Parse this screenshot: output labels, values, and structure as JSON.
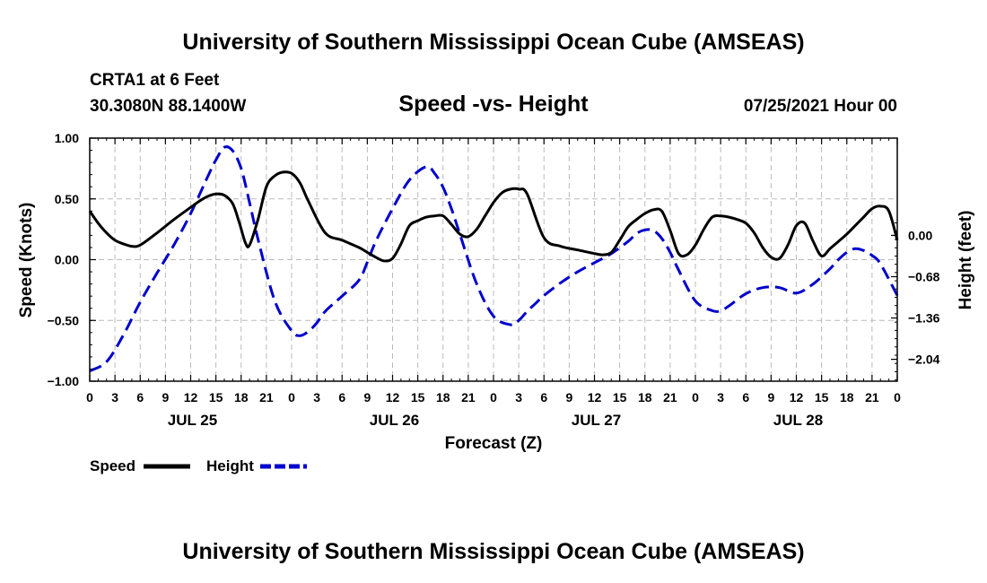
{
  "header": {
    "title": "University of Southern Mississippi Ocean Cube (AMSEAS)",
    "station": "CRTA1 at 6 Feet",
    "coords": "30.3080N  88.1400W",
    "chart_title": "Speed -vs- Height",
    "date": "07/25/2021 Hour 00"
  },
  "footer": {
    "title": "University of Southern Mississippi Ocean Cube (AMSEAS)"
  },
  "legend": {
    "speed_label": "Speed",
    "height_label": "Height"
  },
  "colors": {
    "speed": "#000000",
    "height": "#0000cc",
    "grid": "#bbbbbb"
  },
  "chart_data": {
    "type": "line",
    "title": "Speed -vs- Height",
    "xlabel": "Forecast (Z)",
    "ylabel": "Speed (Knots)",
    "y2label": "Height (feet)",
    "xlim": [
      0,
      96
    ],
    "ylim": [
      -1.0,
      1.0
    ],
    "y2lim": [
      -2.4,
      1.6
    ],
    "x_ticks": [
      0,
      3,
      6,
      9,
      12,
      15,
      18,
      21,
      24,
      27,
      30,
      33,
      36,
      39,
      42,
      45,
      48,
      51,
      54,
      57,
      60,
      63,
      66,
      69,
      72,
      75,
      78,
      81,
      84,
      87,
      90,
      93,
      96
    ],
    "x_tick_labels": [
      "0",
      "3",
      "6",
      "9",
      "12",
      "15",
      "18",
      "21",
      "0",
      "3",
      "6",
      "9",
      "12",
      "15",
      "18",
      "21",
      "0",
      "3",
      "6",
      "9",
      "12",
      "15",
      "18",
      "21",
      "0",
      "3",
      "6",
      "9",
      "12",
      "15",
      "18",
      "21",
      "0"
    ],
    "day_labels": [
      {
        "x": 12,
        "label": "JUL 25"
      },
      {
        "x": 36,
        "label": "JUL 26"
      },
      {
        "x": 60,
        "label": "JUL 27"
      },
      {
        "x": 84,
        "label": "JUL 28"
      }
    ],
    "y_ticks": [
      -1.0,
      -0.5,
      0.0,
      0.5,
      1.0
    ],
    "y_tick_labels": [
      "−1.00",
      "−0.50",
      "0.00",
      "0.50",
      "1.00"
    ],
    "y2_ticks": [
      -2.04,
      -1.36,
      -0.68,
      0.0
    ],
    "y2_tick_labels": [
      "−2.04",
      "−1.36",
      "−0.68",
      "0.00"
    ],
    "series": [
      {
        "name": "Speed",
        "axis": "left",
        "style": "solid",
        "x": [
          0,
          1,
          2,
          3,
          4,
          5,
          6,
          8,
          10,
          12,
          13,
          14,
          15,
          16,
          17,
          17.8,
          18.5,
          19,
          20,
          21,
          22,
          23,
          24,
          25,
          26,
          28,
          30,
          32,
          33,
          34,
          35,
          36,
          37,
          38,
          39,
          40,
          41,
          42,
          43,
          44,
          45,
          46,
          47,
          48,
          49,
          50,
          51,
          52,
          54,
          56,
          58,
          60,
          61,
          62,
          63,
          64,
          65,
          66,
          67,
          68,
          69,
          70,
          71,
          72,
          73,
          74,
          75,
          76,
          77,
          78,
          79,
          80,
          81,
          82,
          83,
          84,
          85,
          86,
          87,
          88,
          89,
          90,
          91,
          92,
          93,
          94,
          95,
          96
        ],
        "values": [
          0.4,
          0.3,
          0.22,
          0.16,
          0.13,
          0.11,
          0.12,
          0.22,
          0.33,
          0.43,
          0.48,
          0.52,
          0.54,
          0.53,
          0.46,
          0.3,
          0.14,
          0.12,
          0.33,
          0.6,
          0.69,
          0.72,
          0.71,
          0.63,
          0.48,
          0.22,
          0.16,
          0.1,
          0.06,
          0.02,
          -0.01,
          0.01,
          0.13,
          0.28,
          0.32,
          0.35,
          0.36,
          0.36,
          0.29,
          0.21,
          0.19,
          0.25,
          0.36,
          0.47,
          0.55,
          0.58,
          0.58,
          0.54,
          0.18,
          0.11,
          0.08,
          0.05,
          0.04,
          0.06,
          0.16,
          0.27,
          0.33,
          0.38,
          0.41,
          0.4,
          0.24,
          0.05,
          0.04,
          0.12,
          0.25,
          0.35,
          0.36,
          0.35,
          0.33,
          0.3,
          0.22,
          0.1,
          0.02,
          0.01,
          0.12,
          0.28,
          0.3,
          0.15,
          0.03,
          0.09,
          0.15,
          0.21,
          0.28,
          0.35,
          0.42,
          0.44,
          0.4,
          0.16
        ]
      },
      {
        "name": "Height",
        "axis": "right",
        "style": "dashed",
        "x": [
          0,
          2,
          4,
          6,
          8,
          10,
          12,
          14,
          15,
          16,
          17,
          18,
          19,
          20,
          22,
          24,
          25,
          26,
          27,
          28,
          30,
          32,
          33,
          34,
          36,
          38,
          40,
          41,
          42,
          43,
          44,
          46,
          48,
          50,
          51,
          52,
          53,
          54,
          56,
          58,
          60,
          62,
          64,
          65,
          66,
          67,
          68,
          69,
          70,
          72,
          74,
          75,
          76,
          78,
          80,
          82,
          84,
          86,
          88,
          89,
          90,
          91,
          92,
          93,
          94,
          96
        ],
        "values": [
          -2.23,
          -2.08,
          -1.64,
          -1.1,
          -0.62,
          -0.16,
          0.36,
          0.96,
          1.24,
          1.45,
          1.39,
          1.1,
          0.54,
          -0.06,
          -1.08,
          -1.57,
          -1.65,
          -1.58,
          -1.44,
          -1.25,
          -1.0,
          -0.74,
          -0.44,
          -0.1,
          0.44,
          0.91,
          1.13,
          1.02,
          0.79,
          0.44,
          0.02,
          -0.8,
          -1.33,
          -1.47,
          -1.4,
          -1.25,
          -1.12,
          -0.99,
          -0.78,
          -0.6,
          -0.45,
          -0.3,
          -0.1,
          0.03,
          0.09,
          0.08,
          -0.05,
          -0.28,
          -0.57,
          -1.08,
          -1.24,
          -1.24,
          -1.16,
          -0.96,
          -0.86,
          -0.86,
          -0.95,
          -0.8,
          -0.55,
          -0.4,
          -0.28,
          -0.22,
          -0.25,
          -0.33,
          -0.47,
          -0.99
        ]
      }
    ]
  }
}
